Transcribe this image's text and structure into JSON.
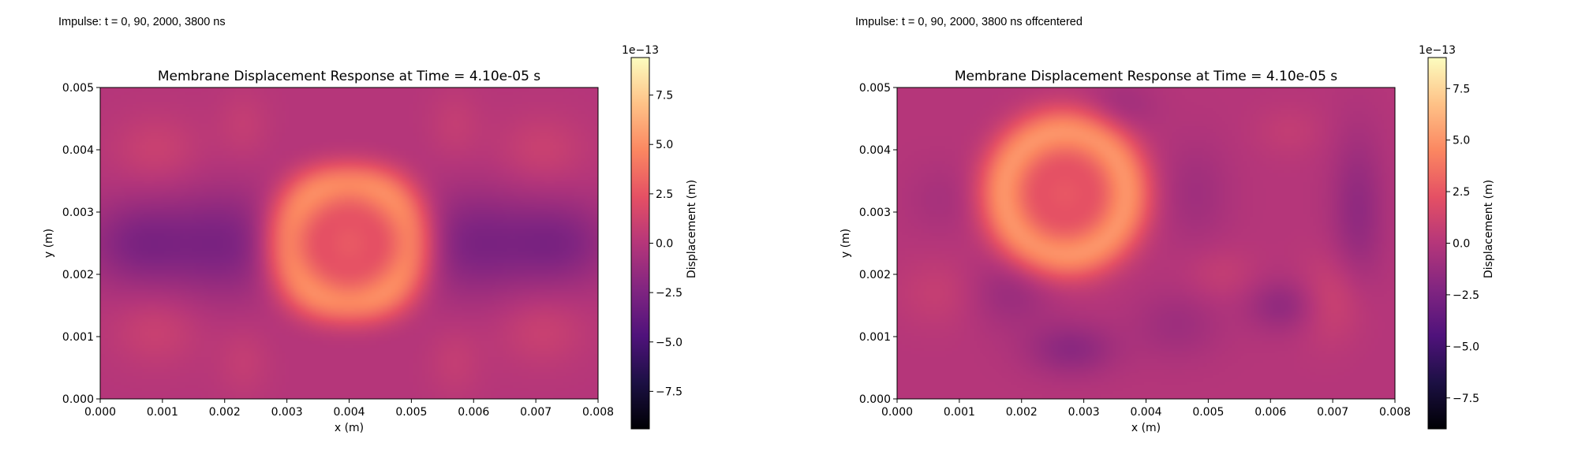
{
  "chart_data": [
    {
      "type": "heatmap",
      "caption": "Impulse: t = 0, 90, 2000, 3800 ns",
      "title": "Membrane Displacement Response at Time = 4.10e-05 s",
      "xlabel": "x (m)",
      "ylabel": "y (m)",
      "xlim": [
        0.0,
        0.008
      ],
      "ylim": [
        0.0,
        0.005
      ],
      "xticks": [
        "0.000",
        "0.001",
        "0.002",
        "0.003",
        "0.004",
        "0.005",
        "0.006",
        "0.007",
        "0.008"
      ],
      "yticks": [
        "0.000",
        "0.001",
        "0.002",
        "0.003",
        "0.004",
        "0.005"
      ],
      "colormap": "magma",
      "colorbar": {
        "label": "Displacement (m)",
        "scale_text": "1e−13",
        "min": -9.4,
        "max": 9.4,
        "ticks": [
          -7.5,
          -5.0,
          -2.5,
          0.0,
          2.5,
          5.0,
          7.5
        ],
        "tick_labels": [
          "−7.5",
          "−5.0",
          "−2.5",
          "0.0",
          "2.5",
          "5.0",
          "7.5"
        ]
      },
      "features": [
        {
          "x": 0.004,
          "y": 0.0025,
          "kind": "ring",
          "radius": 0.001,
          "width": 0.00042,
          "amplitude": 4.9
        },
        {
          "x": 0.004,
          "y": 0.0025,
          "kind": "blob",
          "sx": 0.00045,
          "sy": 0.00045,
          "amplitude": 2.8
        },
        {
          "x": 0.0006,
          "y": 0.0025,
          "kind": "blob",
          "sx": 0.0006,
          "sy": 0.0005,
          "amplitude": -2.3
        },
        {
          "x": 0.002,
          "y": 0.0025,
          "kind": "blob",
          "sx": 0.0007,
          "sy": 0.0006,
          "amplitude": -2.5
        },
        {
          "x": 0.006,
          "y": 0.0025,
          "kind": "blob",
          "sx": 0.0007,
          "sy": 0.0006,
          "amplitude": -2.5
        },
        {
          "x": 0.0074,
          "y": 0.0025,
          "kind": "blob",
          "sx": 0.0006,
          "sy": 0.0005,
          "amplitude": -2.3
        },
        {
          "x": 0.0009,
          "y": 0.004,
          "kind": "blob",
          "sx": 0.0005,
          "sy": 0.0004,
          "amplitude": 1.0
        },
        {
          "x": 0.0071,
          "y": 0.004,
          "kind": "blob",
          "sx": 0.0005,
          "sy": 0.0004,
          "amplitude": 1.0
        },
        {
          "x": 0.0009,
          "y": 0.0011,
          "kind": "blob",
          "sx": 0.0005,
          "sy": 0.0004,
          "amplitude": 1.0
        },
        {
          "x": 0.0071,
          "y": 0.0011,
          "kind": "blob",
          "sx": 0.0005,
          "sy": 0.0004,
          "amplitude": 1.0
        },
        {
          "x": 0.0023,
          "y": 0.0044,
          "kind": "blob",
          "sx": 0.0003,
          "sy": 0.0004,
          "amplitude": 0.7
        },
        {
          "x": 0.0057,
          "y": 0.0044,
          "kind": "blob",
          "sx": 0.0003,
          "sy": 0.0004,
          "amplitude": 0.7
        },
        {
          "x": 0.0023,
          "y": 0.0006,
          "kind": "blob",
          "sx": 0.0003,
          "sy": 0.0004,
          "amplitude": 0.7
        },
        {
          "x": 0.0057,
          "y": 0.0006,
          "kind": "blob",
          "sx": 0.0003,
          "sy": 0.0004,
          "amplitude": 0.7
        },
        {
          "x": 0.004,
          "y": 0.0038,
          "kind": "blob",
          "sx": 0.0005,
          "sy": 0.00025,
          "amplitude": -1.0
        },
        {
          "x": 0.004,
          "y": 0.0012,
          "kind": "blob",
          "sx": 0.0005,
          "sy": 0.00025,
          "amplitude": -1.0
        }
      ]
    },
    {
      "type": "heatmap",
      "caption": "Impulse: t = 0, 90, 2000, 3800 ns offcentered",
      "title": "Membrane Displacement Response at Time = 4.10e-05 s",
      "xlabel": "x (m)",
      "ylabel": "y (m)",
      "xlim": [
        0.0,
        0.008
      ],
      "ylim": [
        0.0,
        0.005
      ],
      "xticks": [
        "0.000",
        "0.001",
        "0.002",
        "0.003",
        "0.004",
        "0.005",
        "0.006",
        "0.007",
        "0.008"
      ],
      "yticks": [
        "0.000",
        "0.001",
        "0.002",
        "0.003",
        "0.004",
        "0.005"
      ],
      "colormap": "magma",
      "colorbar": {
        "label": "Displacement (m)",
        "scale_text": "1e−13",
        "min": -9.0,
        "max": 9.0,
        "ticks": [
          -7.5,
          -5.0,
          -2.5,
          0.0,
          2.5,
          5.0,
          7.5
        ],
        "tick_labels": [
          "−7.5",
          "−5.0",
          "−2.5",
          "0.0",
          "2.5",
          "5.0",
          "7.5"
        ]
      },
      "features": [
        {
          "x": 0.0027,
          "y": 0.0033,
          "kind": "ring",
          "radius": 0.001,
          "width": 0.00042,
          "amplitude": 4.8
        },
        {
          "x": 0.0027,
          "y": 0.0033,
          "kind": "blob",
          "sx": 0.00045,
          "sy": 0.00045,
          "amplitude": 2.5
        },
        {
          "x": 0.0028,
          "y": 0.0008,
          "kind": "blob",
          "sx": 0.0005,
          "sy": 0.0003,
          "amplitude": -1.8
        },
        {
          "x": 0.0018,
          "y": 0.0017,
          "kind": "blob",
          "sx": 0.0005,
          "sy": 0.0004,
          "amplitude": -1.2
        },
        {
          "x": 0.0045,
          "y": 0.0012,
          "kind": "blob",
          "sx": 0.0005,
          "sy": 0.0004,
          "amplitude": -1.0
        },
        {
          "x": 0.0062,
          "y": 0.0015,
          "kind": "blob",
          "sx": 0.0004,
          "sy": 0.0003,
          "amplitude": -1.6
        },
        {
          "x": 0.0074,
          "y": 0.003,
          "kind": "blob",
          "sx": 0.0003,
          "sy": 0.0009,
          "amplitude": -1.6
        },
        {
          "x": 0.0048,
          "y": 0.0033,
          "kind": "blob",
          "sx": 0.0004,
          "sy": 0.0006,
          "amplitude": -0.9
        },
        {
          "x": 0.0036,
          "y": 0.0047,
          "kind": "blob",
          "sx": 0.0004,
          "sy": 0.0003,
          "amplitude": -0.9
        },
        {
          "x": 0.0007,
          "y": 0.0017,
          "kind": "blob",
          "sx": 0.0005,
          "sy": 0.0004,
          "amplitude": 0.8
        },
        {
          "x": 0.007,
          "y": 0.0016,
          "kind": "blob",
          "sx": 0.0004,
          "sy": 0.0005,
          "amplitude": 1.2
        },
        {
          "x": 0.0052,
          "y": 0.002,
          "kind": "blob",
          "sx": 0.0004,
          "sy": 0.0003,
          "amplitude": 0.7
        },
        {
          "x": 0.0063,
          "y": 0.0043,
          "kind": "blob",
          "sx": 0.0004,
          "sy": 0.0003,
          "amplitude": 0.6
        },
        {
          "x": 0.0007,
          "y": 0.0032,
          "kind": "blob",
          "sx": 0.0004,
          "sy": 0.0004,
          "amplitude": -0.6
        }
      ]
    }
  ]
}
